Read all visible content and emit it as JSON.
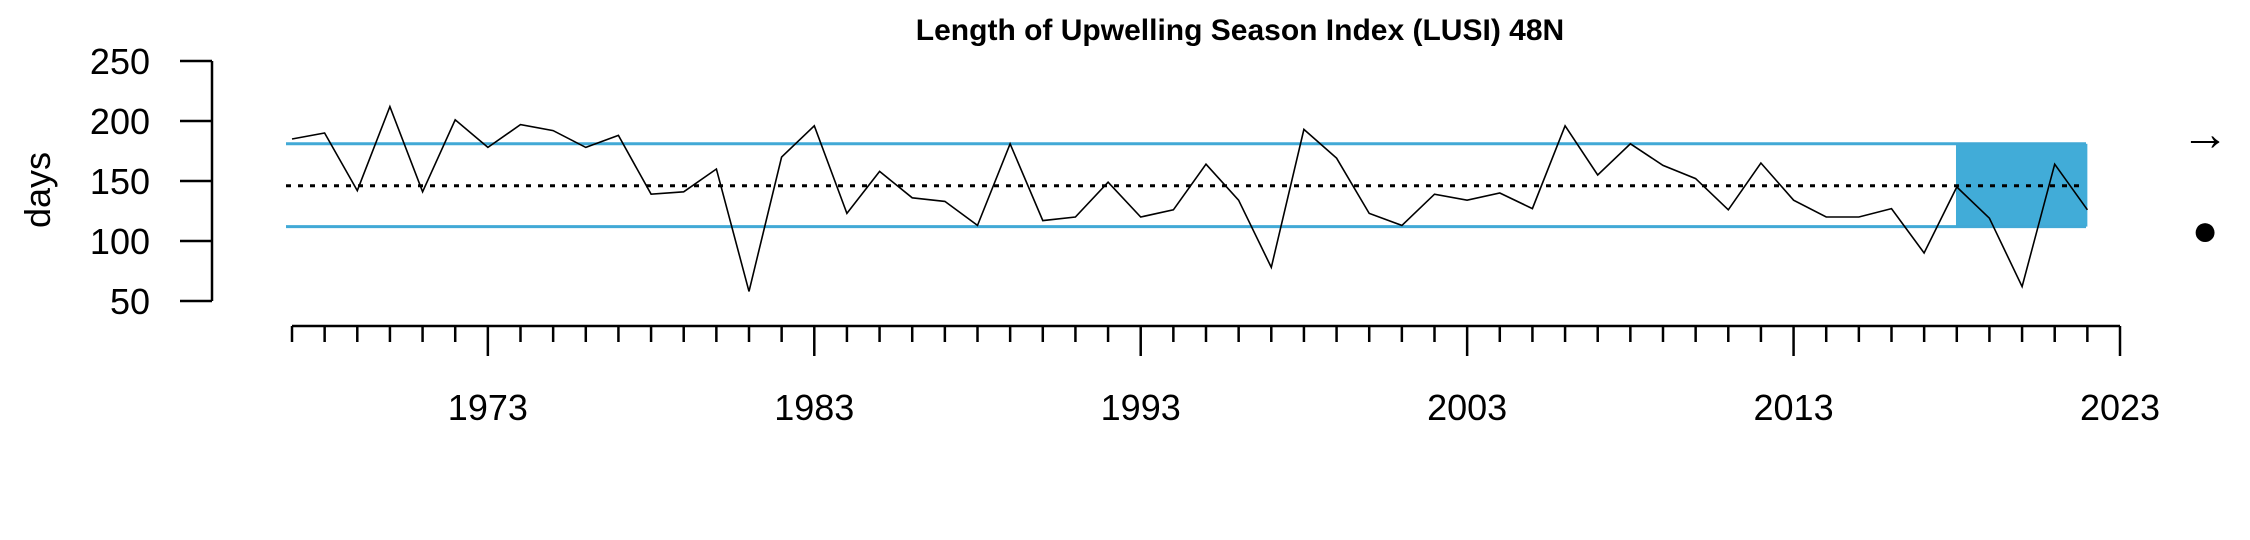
{
  "chart_data": {
    "type": "line",
    "title": "Length of Upwelling Season Index (LUSI) 48N",
    "xlabel": "",
    "ylabel": "days",
    "x": [
      1967,
      1968,
      1969,
      1970,
      1971,
      1972,
      1973,
      1974,
      1975,
      1976,
      1977,
      1978,
      1979,
      1980,
      1981,
      1982,
      1983,
      1984,
      1985,
      1986,
      1987,
      1988,
      1989,
      1990,
      1991,
      1992,
      1993,
      1994,
      1995,
      1996,
      1997,
      1998,
      1999,
      2000,
      2001,
      2002,
      2003,
      2004,
      2005,
      2006,
      2007,
      2008,
      2009,
      2010,
      2011,
      2012,
      2013,
      2014,
      2015,
      2016,
      2017,
      2018,
      2019,
      2020,
      2021,
      2022
    ],
    "series": [
      {
        "values": [
          185,
          190,
          142,
          212,
          141,
          201,
          178,
          197,
          192,
          178,
          188,
          139,
          141,
          160,
          58,
          170,
          196,
          123,
          158,
          136,
          133,
          113,
          181,
          117,
          120,
          149,
          120,
          126,
          164,
          134,
          78,
          193,
          169,
          123,
          113,
          139,
          134,
          140,
          127,
          196,
          155,
          181,
          163,
          152,
          126,
          165,
          134,
          120,
          120,
          127,
          90,
          145,
          119,
          62,
          164,
          126
        ]
      }
    ],
    "mean": 146,
    "upper_sd": 181,
    "lower_sd": 112,
    "ylim": [
      50,
      250
    ],
    "yticks": [
      50,
      100,
      150,
      200,
      250
    ],
    "xlim": [
      1967,
      2023
    ],
    "xtick_labels": [
      "1973",
      "1983",
      "1993",
      "2003",
      "2013",
      "2023"
    ],
    "highlight_range": [
      2018,
      2022
    ],
    "trend_symbol": "→",
    "mean_symbol": "●",
    "colors": {
      "line": "#000000",
      "sd_lines": "#41a9d6",
      "highlight": "#41acd8",
      "mean_line": "#000000"
    }
  }
}
